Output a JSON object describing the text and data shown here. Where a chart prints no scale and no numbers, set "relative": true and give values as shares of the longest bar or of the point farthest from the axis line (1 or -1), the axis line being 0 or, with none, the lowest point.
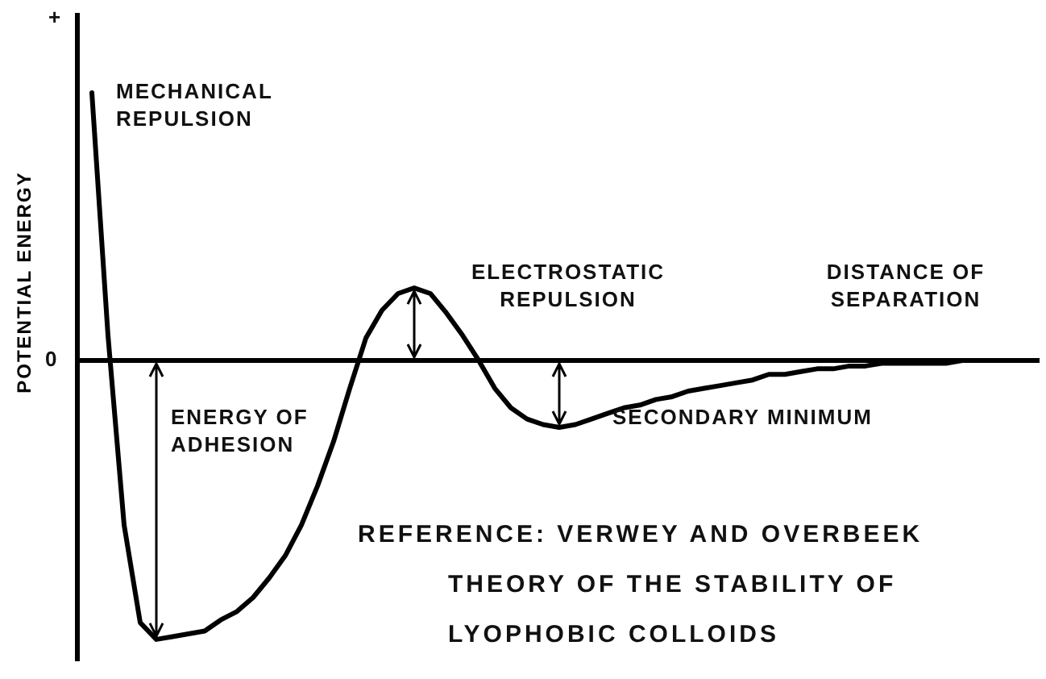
{
  "chart_data": {
    "type": "line",
    "relative": true,
    "ylabel": "POTENTIAL ENERGY",
    "color": "#000000",
    "marker": "none",
    "line_style": "solid",
    "legend": false,
    "categories": [
      null,
      null,
      null,
      null,
      null,
      null,
      null,
      null,
      null,
      null,
      null,
      null,
      null,
      null,
      null,
      null,
      null,
      null,
      null,
      null,
      null,
      null,
      null,
      null,
      null,
      null,
      null,
      null,
      null,
      null,
      null,
      null,
      null,
      null,
      null,
      null,
      null,
      null,
      null,
      null,
      null,
      null,
      null,
      null,
      null,
      null,
      null,
      null,
      null,
      null,
      null,
      null,
      null,
      null,
      null,
      null
    ],
    "values": [
      0.96,
      0.09,
      -0.59,
      -0.94,
      -1,
      -0.99,
      -0.98,
      -0.97,
      -0.93,
      -0.9,
      -0.85,
      -0.78,
      -0.7,
      -0.59,
      -0.45,
      -0.29,
      -0.1,
      0.08,
      0.18,
      0.24,
      0.26,
      0.24,
      0.17,
      0.09,
      0,
      -0.1,
      -0.17,
      -0.21,
      -0.23,
      -0.24,
      -0.23,
      -0.21,
      -0.19,
      -0.17,
      -0.16,
      -0.14,
      -0.13,
      -0.11,
      -0.1,
      -0.09,
      -0.08,
      -0.07,
      -0.05,
      -0.05,
      -0.04,
      -0.03,
      -0.03,
      -0.02,
      -0.02,
      -0.01,
      -0.01,
      -0.01,
      -0.01,
      -0.01,
      0,
      0
    ],
    "annotations": [
      "+",
      "0",
      "MECHANICAL REPULSION",
      "ENERGY OF ADHESION",
      "ELECTROSTATIC REPULSION",
      "DISTANCE OF SEPARATION",
      "SECONDARY MINIMUM",
      "REFERENCE: VERWEY AND OVERBEEK THEORY OF THE STABILITY OF LYOPHOBIC COLLOIDS"
    ]
  }
}
